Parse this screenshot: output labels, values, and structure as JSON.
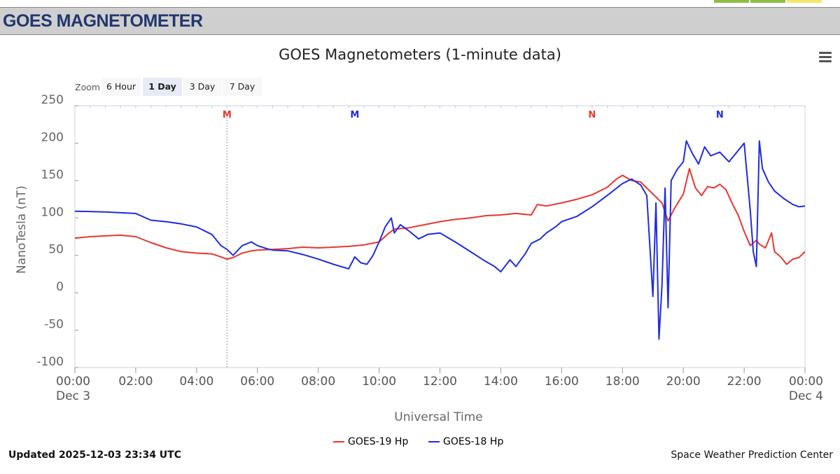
{
  "banner": {
    "title": "GOES MAGNETOMETER"
  },
  "colors": {
    "goes19": "#e8372e",
    "goes18": "#1f2ce0",
    "top_swatches": [
      "#8bbd45",
      "#8bbd45",
      "#f6e66b"
    ]
  },
  "toolbar": {
    "zoom_label": "Zoom",
    "buttons": [
      {
        "label": "6 Hour",
        "active": false
      },
      {
        "label": "1 Day",
        "active": true
      },
      {
        "label": "3 Day",
        "active": false
      },
      {
        "label": "7 Day",
        "active": false
      }
    ],
    "menu_icon": "hamburger-menu-icon"
  },
  "footer": {
    "updated": "Updated 2025-12-03 23:34 UTC",
    "credit": "Space Weather Prediction Center"
  },
  "chart_data": {
    "type": "line",
    "title": "GOES Magnetometers (1-minute data)",
    "xlabel": "Universal Time",
    "ylabel": "NanoTesla (nT)",
    "ylim": [
      -100,
      250
    ],
    "xlim": [
      0,
      24
    ],
    "y_ticks": [
      "250",
      "200",
      "150",
      "100",
      "50",
      "0",
      "-50",
      "-100"
    ],
    "x_ticks": [
      {
        "h": 0,
        "label": "00:00",
        "sub": "Dec 3"
      },
      {
        "h": 2,
        "label": "02:00",
        "sub": ""
      },
      {
        "h": 4,
        "label": "04:00",
        "sub": ""
      },
      {
        "h": 6,
        "label": "06:00",
        "sub": ""
      },
      {
        "h": 8,
        "label": "08:00",
        "sub": ""
      },
      {
        "h": 10,
        "label": "10:00",
        "sub": ""
      },
      {
        "h": 12,
        "label": "12:00",
        "sub": ""
      },
      {
        "h": 14,
        "label": "14:00",
        "sub": ""
      },
      {
        "h": 16,
        "label": "16:00",
        "sub": ""
      },
      {
        "h": 18,
        "label": "18:00",
        "sub": ""
      },
      {
        "h": 20,
        "label": "20:00",
        "sub": ""
      },
      {
        "h": 22,
        "label": "22:00",
        "sub": ""
      },
      {
        "h": 24,
        "label": "00:00",
        "sub": "Dec 4"
      }
    ],
    "annotations": [
      {
        "label": "M",
        "x": 5.0,
        "series": "GOES-19 Hp",
        "color": "#e8372e",
        "line": true
      },
      {
        "label": "M",
        "x": 9.2,
        "series": "GOES-18 Hp",
        "color": "#1f2ce0",
        "line": false
      },
      {
        "label": "N",
        "x": 17.0,
        "series": "GOES-19 Hp",
        "color": "#e8372e",
        "line": false
      },
      {
        "label": "N",
        "x": 21.2,
        "series": "GOES-18 Hp",
        "color": "#1f2ce0",
        "line": false
      }
    ],
    "series": [
      {
        "name": "GOES-19 Hp",
        "color": "#e8372e",
        "x": [
          0,
          0.5,
          1,
          1.5,
          2,
          2.5,
          3,
          3.5,
          4,
          4.5,
          4.8,
          5.0,
          5.2,
          5.5,
          5.8,
          6,
          6.5,
          7,
          7.5,
          8,
          8.5,
          9,
          9.5,
          10,
          10.3,
          10.5,
          11,
          11.5,
          12,
          12.5,
          13,
          13.5,
          14,
          14.5,
          15,
          15.2,
          15.5,
          16,
          16.5,
          17,
          17.5,
          17.8,
          18,
          18.3,
          18.6,
          19,
          19.1,
          19.3,
          19.5,
          19.7,
          20,
          20.2,
          20.4,
          20.6,
          20.8,
          21,
          21.2,
          21.4,
          21.6,
          21.8,
          22,
          22.2,
          22.4,
          22.5,
          22.7,
          22.9,
          23,
          23.2,
          23.4,
          23.6,
          23.8,
          24
        ],
        "values": [
          73,
          75,
          76,
          77,
          75,
          67,
          60,
          55,
          53,
          52,
          48,
          45,
          47,
          53,
          56,
          57,
          58,
          59,
          61,
          60,
          61,
          62,
          64,
          68,
          79,
          85,
          87,
          91,
          95,
          98,
          100,
          103,
          104,
          106,
          104,
          118,
          116,
          120,
          125,
          131,
          141,
          152,
          157,
          150,
          148,
          132,
          128,
          120,
          96,
          112,
          132,
          166,
          140,
          130,
          142,
          140,
          145,
          138,
          120,
          104,
          82,
          63,
          70,
          65,
          60,
          80,
          55,
          48,
          38,
          45,
          47,
          55
        ]
      },
      {
        "name": "GOES-18 Hp",
        "color": "#1f2ce0",
        "x": [
          0,
          1,
          2,
          2.5,
          3,
          3.5,
          4,
          4.5,
          4.8,
          5,
          5.2,
          5.5,
          5.8,
          6,
          6.3,
          6.5,
          7,
          7.5,
          8,
          8.5,
          9,
          9.2,
          9.4,
          9.6,
          9.8,
          10,
          10.2,
          10.4,
          10.5,
          10.7,
          11,
          11.3,
          11.6,
          12,
          12.5,
          13,
          13.5,
          13.8,
          14,
          14.3,
          14.5,
          14.8,
          15,
          15.3,
          15.5,
          15.8,
          16,
          16.5,
          17,
          17.5,
          18,
          18.3,
          18.6,
          18.8,
          19.0,
          19.1,
          19.2,
          19.3,
          19.4,
          19.5,
          19.6,
          19.8,
          20,
          20.1,
          20.3,
          20.5,
          20.7,
          20.9,
          21.2,
          21.5,
          21.8,
          22,
          22.2,
          22.3,
          22.4,
          22.5,
          22.6,
          22.8,
          23,
          23.3,
          23.6,
          23.8,
          24
        ],
        "values": [
          109,
          108,
          106,
          97,
          95,
          92,
          88,
          78,
          63,
          58,
          50,
          63,
          68,
          63,
          59,
          57,
          56,
          51,
          45,
          38,
          32,
          48,
          40,
          38,
          50,
          68,
          88,
          100,
          80,
          91,
          82,
          72,
          78,
          80,
          68,
          55,
          42,
          35,
          28,
          44,
          35,
          52,
          66,
          72,
          80,
          88,
          95,
          102,
          115,
          130,
          146,
          152,
          144,
          130,
          -5,
          120,
          -62,
          10,
          140,
          -20,
          150,
          165,
          175,
          203,
          186,
          172,
          195,
          183,
          188,
          175,
          190,
          200,
          110,
          55,
          35,
          203,
          166,
          148,
          136,
          126,
          118,
          115,
          116
        ]
      }
    ],
    "legend_position": "bottom-center",
    "grid": false
  }
}
